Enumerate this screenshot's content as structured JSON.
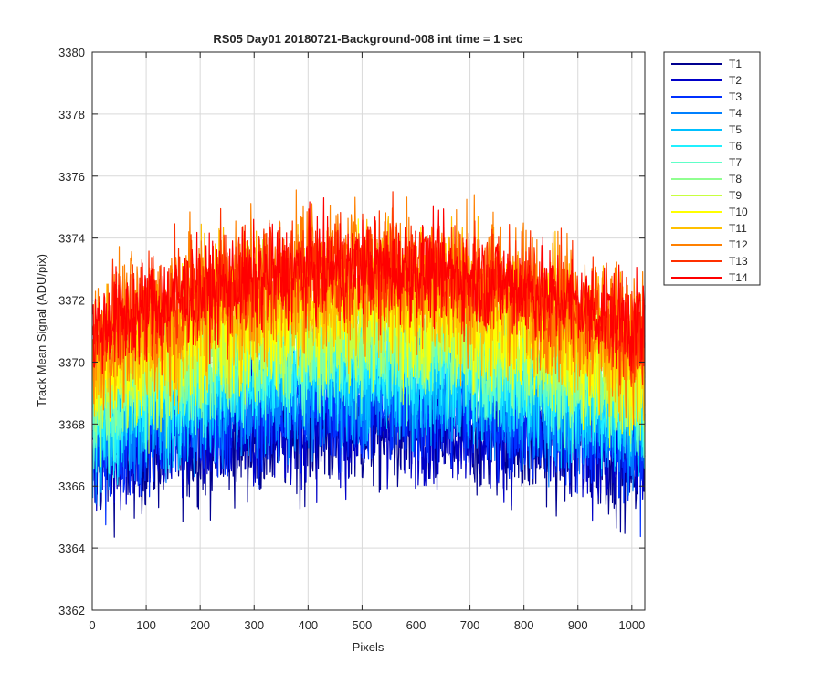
{
  "chart_data": {
    "type": "line",
    "title": "RS05 Day01 20180721-Background-008 int time = 1 sec",
    "xlabel": "Pixels",
    "ylabel": "Track Mean Signal (ADU/pix)",
    "xlim": [
      0,
      1024
    ],
    "ylim": [
      3362,
      3380
    ],
    "xticks": [
      0,
      100,
      200,
      300,
      400,
      500,
      600,
      700,
      800,
      900,
      1000
    ],
    "yticks": [
      3362,
      3364,
      3366,
      3368,
      3370,
      3372,
      3374,
      3376,
      3378,
      3380
    ],
    "grid": true,
    "legend_position": "outside-top-right",
    "x_points": 1024,
    "series": [
      {
        "name": "T1",
        "color": "#00008f",
        "center": 3367.8,
        "edge": 3366.8,
        "noise": 1.0
      },
      {
        "name": "T2",
        "color": "#0000c8",
        "center": 3368.1,
        "edge": 3367.0,
        "noise": 1.0
      },
      {
        "name": "T3",
        "color": "#0030ff",
        "center": 3368.6,
        "edge": 3367.3,
        "noise": 1.0
      },
      {
        "name": "T4",
        "color": "#0080ff",
        "center": 3369.1,
        "edge": 3367.7,
        "noise": 1.0
      },
      {
        "name": "T5",
        "color": "#00c0ff",
        "center": 3369.6,
        "edge": 3368.0,
        "noise": 1.0
      },
      {
        "name": "T6",
        "color": "#20f0ff",
        "center": 3370.1,
        "edge": 3368.4,
        "noise": 1.0
      },
      {
        "name": "T7",
        "color": "#60ffc8",
        "center": 3370.5,
        "edge": 3368.7,
        "noise": 1.0
      },
      {
        "name": "T8",
        "color": "#90ff90",
        "center": 3370.9,
        "edge": 3369.0,
        "noise": 1.0
      },
      {
        "name": "T9",
        "color": "#c8ff40",
        "center": 3371.3,
        "edge": 3369.3,
        "noise": 1.0
      },
      {
        "name": "T10",
        "color": "#ffff00",
        "center": 3371.8,
        "edge": 3369.7,
        "noise": 1.05
      },
      {
        "name": "T11",
        "color": "#ffc000",
        "center": 3372.3,
        "edge": 3370.1,
        "noise": 1.1
      },
      {
        "name": "T12",
        "color": "#ff8000",
        "center": 3373.0,
        "edge": 3370.6,
        "noise": 1.15
      },
      {
        "name": "T13",
        "color": "#ff3000",
        "center": 3373.1,
        "edge": 3370.8,
        "noise": 0.9
      },
      {
        "name": "T14",
        "color": "#ff0000",
        "center": 3373.0,
        "edge": 3371.0,
        "noise": 0.8
      }
    ]
  }
}
